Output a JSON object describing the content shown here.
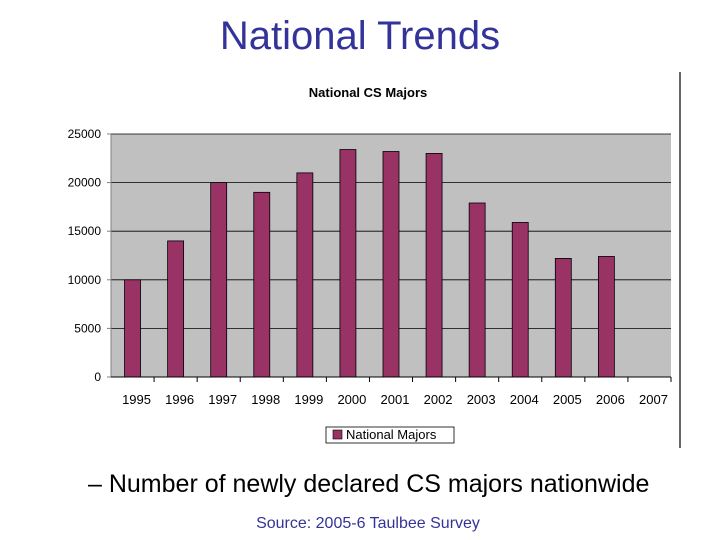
{
  "slide": {
    "title": "National Trends",
    "caption": "– Number of newly declared CS majors nationwide",
    "source": "Source: 2005-6 Taulbee Survey"
  },
  "colors": {
    "title": "#333399",
    "bar": "#993366",
    "plot_background": "#c0c0c0",
    "source_text": "#333399"
  },
  "chart_data": {
    "type": "bar",
    "title": "National CS Majors",
    "xlabel": "",
    "ylabel": "",
    "categories": [
      "1995",
      "1996",
      "1997",
      "1998",
      "1999",
      "2000",
      "2001",
      "2002",
      "2003",
      "2004",
      "2005",
      "2006",
      "2007"
    ],
    "series": [
      {
        "name": "National Majors",
        "values": [
          10000,
          14000,
          20000,
          19000,
          21000,
          23400,
          23200,
          23000,
          17900,
          15900,
          12200,
          12400,
          null
        ]
      }
    ],
    "ylim": [
      0,
      25000
    ],
    "yticks": [
      0,
      5000,
      10000,
      15000,
      20000,
      25000
    ],
    "grid": true,
    "legend_position": "bottom"
  }
}
